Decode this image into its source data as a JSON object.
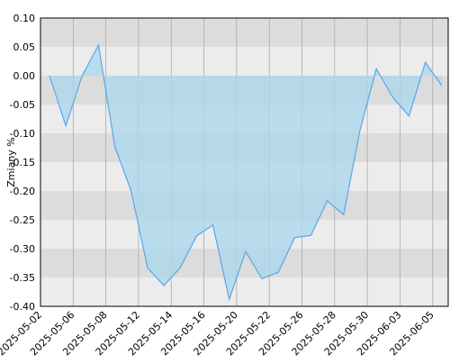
{
  "chart_data": {
    "type": "area",
    "y_label": "Zmiany %",
    "x": [
      0,
      1,
      2,
      3,
      4,
      5,
      6,
      7,
      8,
      9,
      10,
      11,
      12,
      13,
      14,
      15,
      16,
      17,
      18,
      19,
      20,
      21,
      22,
      23,
      24
    ],
    "series": [
      {
        "color": "#5aa7e6",
        "fill": "#add8ee",
        "values": [
          0.0,
          -0.087,
          0.0,
          0.053,
          -0.123,
          -0.2,
          -0.333,
          -0.364,
          -0.333,
          -0.278,
          -0.259,
          -0.388,
          -0.305,
          -0.352,
          -0.341,
          -0.281,
          -0.277,
          -0.217,
          -0.241,
          -0.095,
          0.012,
          -0.037,
          -0.07,
          0.023,
          -0.017
        ]
      }
    ],
    "xlim": [
      -0.55,
      24.4
    ],
    "xticks": [
      {
        "value": -0.55,
        "label": "2025-05-02"
      },
      {
        "value": 1.45,
        "label": "2025-05-06"
      },
      {
        "value": 3.45,
        "label": "2025-05-08"
      },
      {
        "value": 5.45,
        "label": "2025-05-12"
      },
      {
        "value": 7.45,
        "label": "2025-05-14"
      },
      {
        "value": 9.45,
        "label": "2025-05-16"
      },
      {
        "value": 11.45,
        "label": "2025-05-20"
      },
      {
        "value": 13.45,
        "label": "2025-05-22"
      },
      {
        "value": 15.45,
        "label": "2025-05-26"
      },
      {
        "value": 17.45,
        "label": "2025-05-28"
      },
      {
        "value": 19.45,
        "label": "2025-05-30"
      },
      {
        "value": 21.45,
        "label": "2025-06-03"
      },
      {
        "value": 23.45,
        "label": "2025-06-05"
      }
    ],
    "ylim": [
      -0.4,
      0.1
    ],
    "yticks": [
      {
        "value": 0.1,
        "label": "0.10"
      },
      {
        "value": 0.05,
        "label": "0.05"
      },
      {
        "value": 0,
        "label": "0.00"
      },
      {
        "value": -0.05,
        "label": "-0.05"
      },
      {
        "value": -0.1,
        "label": "-0.10"
      },
      {
        "value": -0.15,
        "label": "-0.15"
      },
      {
        "value": -0.2,
        "label": "-0.20"
      },
      {
        "value": -0.25,
        "label": "-0.25"
      },
      {
        "value": -0.3,
        "label": "-0.30"
      },
      {
        "value": -0.35,
        "label": "-0.35"
      },
      {
        "value": -0.4,
        "label": "-0.40"
      }
    ],
    "band_colors": [
      "#dcdcdc",
      "#ececec"
    ],
    "grid": true
  }
}
